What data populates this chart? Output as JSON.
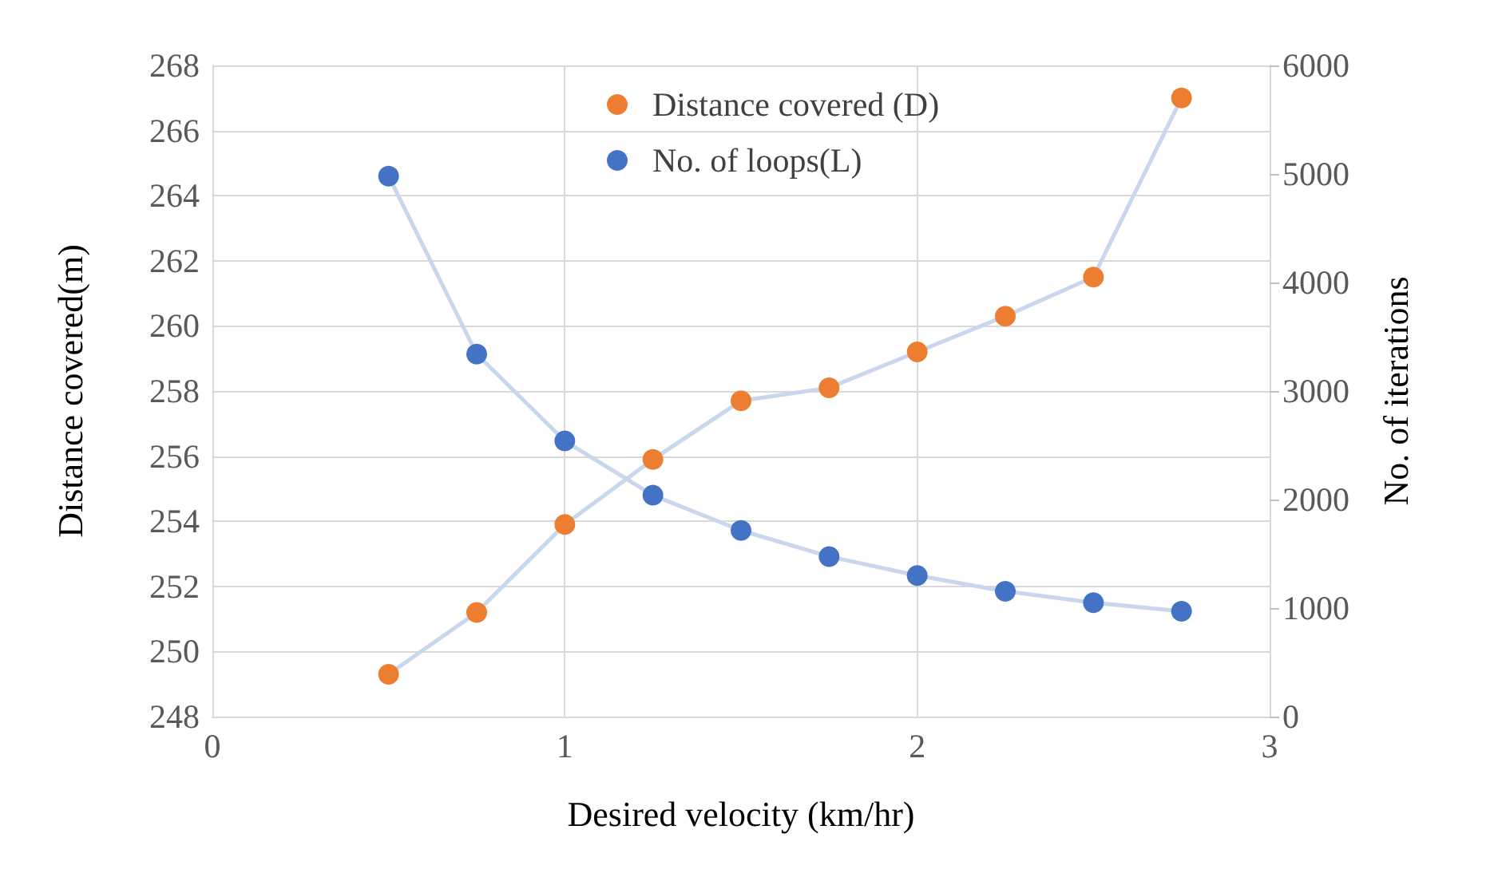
{
  "chart_data": {
    "type": "line",
    "xlabel": "Desired velocity (km/hr)",
    "ylabel": "Distance covered(m)",
    "y2label": "No. of iterations",
    "x": [
      0.5,
      0.75,
      1.0,
      1.25,
      1.5,
      1.75,
      2.0,
      2.25,
      2.5,
      2.75
    ],
    "series": [
      {
        "name": "Distance covered (D)",
        "color": "#ed7d31",
        "values": [
          249.3,
          251.2,
          253.9,
          255.9,
          257.7,
          258.1,
          259.2,
          260.3,
          261.5,
          267.0
        ]
      },
      {
        "name": "No. of loops(L)",
        "color": "#4472c4",
        "axis": "y2",
        "values": [
          4980,
          3340,
          2540,
          2040,
          1715,
          1475,
          1300,
          1155,
          1050,
          970
        ]
      }
    ],
    "xlim": [
      0,
      3
    ],
    "xticks": [
      0,
      1,
      2,
      3
    ],
    "ylim": [
      248,
      268
    ],
    "yticks": [
      248,
      250,
      252,
      254,
      256,
      258,
      260,
      262,
      264,
      266,
      268
    ],
    "y2lim": [
      0,
      6000
    ],
    "y2ticks": [
      0,
      1000,
      2000,
      3000,
      4000,
      5000,
      6000
    ],
    "grid": true,
    "legend": "top",
    "marker": "circle",
    "line_style": "solid"
  }
}
